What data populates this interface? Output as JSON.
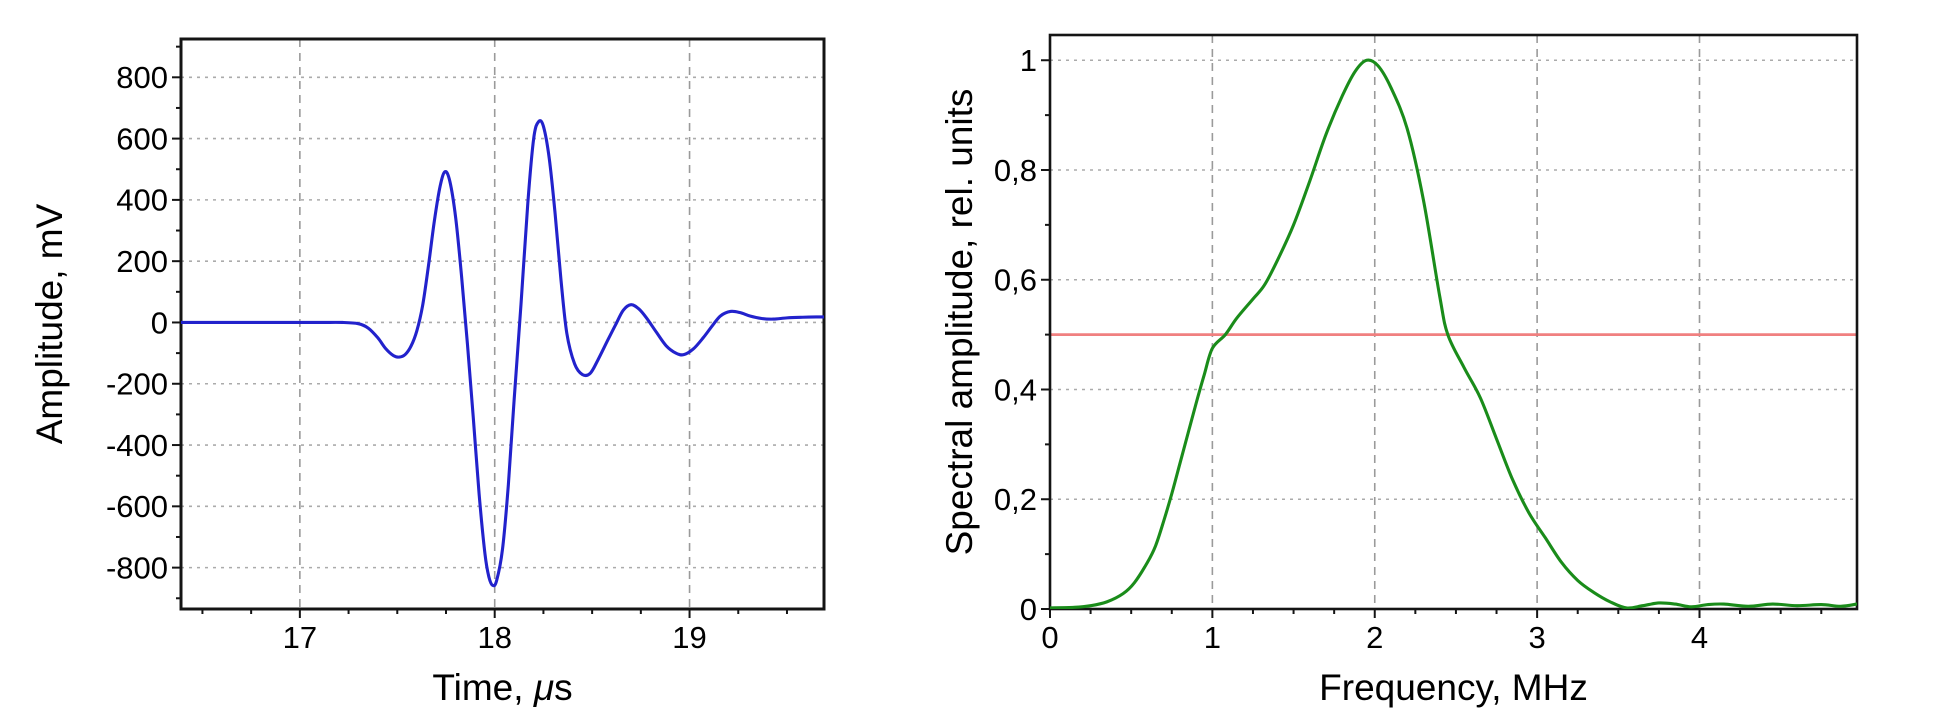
{
  "colors": {
    "background": "#ffffff",
    "frame": "#141414",
    "grid_vertical": "#9a9a9a",
    "grid_horizontal": "#ababab",
    "waveform_line": "#2222cc",
    "spectrum_line": "#1a8c1a",
    "reference_line": "#f08080",
    "text": "#000000"
  },
  "chart_data": [
    {
      "id": "waveform",
      "type": "line",
      "title": "",
      "xlabel": "Time, μs",
      "ylabel": "Amplitude, mV",
      "xlim": [
        16.39,
        19.69
      ],
      "ylim": [
        -935,
        925
      ],
      "grid": true,
      "legend": "none",
      "xticks": [
        {
          "v": 17,
          "label": "17"
        },
        {
          "v": 18,
          "label": "18"
        },
        {
          "v": 19,
          "label": "19"
        }
      ],
      "yticks": [
        {
          "v": 800,
          "label": "800"
        },
        {
          "v": 600,
          "label": "600"
        },
        {
          "v": 400,
          "label": "400"
        },
        {
          "v": 200,
          "label": "200"
        },
        {
          "v": 0,
          "label": "0"
        },
        {
          "v": -200,
          "label": "-200"
        },
        {
          "v": -400,
          "label": "-400"
        },
        {
          "v": -600,
          "label": "-600"
        },
        {
          "v": -800,
          "label": "-800"
        }
      ],
      "minor_x_step": 0.25,
      "minor_y_step": 100,
      "line_color": "#2222cc",
      "series": [
        {
          "name": "echo-waveform",
          "points": [
            [
              16.39,
              0
            ],
            [
              16.6,
              0
            ],
            [
              16.9,
              0
            ],
            [
              17.1,
              0
            ],
            [
              17.22,
              0
            ],
            [
              17.3,
              -4
            ],
            [
              17.35,
              -18
            ],
            [
              17.4,
              -50
            ],
            [
              17.44,
              -85
            ],
            [
              17.48,
              -108
            ],
            [
              17.51,
              -113
            ],
            [
              17.54,
              -105
            ],
            [
              17.57,
              -78
            ],
            [
              17.6,
              -28
            ],
            [
              17.63,
              55
            ],
            [
              17.66,
              185
            ],
            [
              17.69,
              330
            ],
            [
              17.72,
              445
            ],
            [
              17.745,
              492
            ],
            [
              17.77,
              460
            ],
            [
              17.8,
              340
            ],
            [
              17.83,
              150
            ],
            [
              17.86,
              -70
            ],
            [
              17.89,
              -310
            ],
            [
              17.92,
              -560
            ],
            [
              17.95,
              -755
            ],
            [
              17.97,
              -830
            ],
            [
              17.99,
              -858
            ],
            [
              18.01,
              -842
            ],
            [
              18.04,
              -740
            ],
            [
              18.07,
              -530
            ],
            [
              18.1,
              -250
            ],
            [
              18.135,
              60
            ],
            [
              18.17,
              390
            ],
            [
              18.2,
              600
            ],
            [
              18.225,
              655
            ],
            [
              18.25,
              640
            ],
            [
              18.28,
              535
            ],
            [
              18.31,
              355
            ],
            [
              18.34,
              140
            ],
            [
              18.37,
              -35
            ],
            [
              18.41,
              -135
            ],
            [
              18.45,
              -170
            ],
            [
              18.49,
              -166
            ],
            [
              18.53,
              -122
            ],
            [
              18.58,
              -58
            ],
            [
              18.62,
              -8
            ],
            [
              18.66,
              40
            ],
            [
              18.7,
              58
            ],
            [
              18.74,
              44
            ],
            [
              18.78,
              14
            ],
            [
              18.83,
              -32
            ],
            [
              18.88,
              -76
            ],
            [
              18.93,
              -100
            ],
            [
              18.97,
              -105
            ],
            [
              19.02,
              -86
            ],
            [
              19.07,
              -50
            ],
            [
              19.12,
              -8
            ],
            [
              19.16,
              22
            ],
            [
              19.21,
              36
            ],
            [
              19.26,
              32
            ],
            [
              19.31,
              21
            ],
            [
              19.37,
              13
            ],
            [
              19.43,
              11
            ],
            [
              19.5,
              15
            ],
            [
              19.58,
              17
            ],
            [
              19.65,
              18
            ],
            [
              19.69,
              18
            ]
          ]
        }
      ]
    },
    {
      "id": "spectrum",
      "type": "line",
      "title": "",
      "xlabel": "Frequency, MHz",
      "ylabel": "Spectral amplitude, rel. units",
      "xlim": [
        0,
        4.97
      ],
      "ylim": [
        0,
        1.046
      ],
      "grid": true,
      "legend": "none",
      "xticks": [
        {
          "v": 0,
          "label": "0"
        },
        {
          "v": 1,
          "label": "1"
        },
        {
          "v": 2,
          "label": "2"
        },
        {
          "v": 3,
          "label": "3"
        },
        {
          "v": 4,
          "label": "4"
        }
      ],
      "yticks": [
        {
          "v": 1,
          "label": "1"
        },
        {
          "v": 0.8,
          "label": "0,8"
        },
        {
          "v": 0.6,
          "label": "0,6"
        },
        {
          "v": 0.4,
          "label": "0,4"
        },
        {
          "v": 0.2,
          "label": "0,2"
        },
        {
          "v": 0,
          "label": "0"
        }
      ],
      "minor_x_step": 0.25,
      "minor_y_step": 0.1,
      "line_color": "#1a8c1a",
      "ref_lines": [
        {
          "name": "half-amplitude-reference-line",
          "y": 0.5,
          "color": "#f08080"
        }
      ],
      "series": [
        {
          "name": "spectrum",
          "points": [
            [
              0,
              0.002
            ],
            [
              0.15,
              0.003
            ],
            [
              0.25,
              0.006
            ],
            [
              0.35,
              0.013
            ],
            [
              0.45,
              0.028
            ],
            [
              0.52,
              0.048
            ],
            [
              0.6,
              0.085
            ],
            [
              0.65,
              0.115
            ],
            [
              0.7,
              0.16
            ],
            [
              0.75,
              0.21
            ],
            [
              0.8,
              0.265
            ],
            [
              0.85,
              0.32
            ],
            [
              0.9,
              0.375
            ],
            [
              0.95,
              0.427
            ],
            [
              1.0,
              0.475
            ],
            [
              1.08,
              0.5
            ],
            [
              1.15,
              0.53
            ],
            [
              1.25,
              0.565
            ],
            [
              1.32,
              0.59
            ],
            [
              1.4,
              0.635
            ],
            [
              1.5,
              0.7
            ],
            [
              1.6,
              0.78
            ],
            [
              1.7,
              0.865
            ],
            [
              1.8,
              0.935
            ],
            [
              1.88,
              0.98
            ],
            [
              1.95,
              1.0
            ],
            [
              2.02,
              0.99
            ],
            [
              2.1,
              0.95
            ],
            [
              2.2,
              0.875
            ],
            [
              2.3,
              0.745
            ],
            [
              2.4,
              0.57
            ],
            [
              2.45,
              0.5
            ],
            [
              2.55,
              0.44
            ],
            [
              2.65,
              0.385
            ],
            [
              2.75,
              0.31
            ],
            [
              2.85,
              0.235
            ],
            [
              2.95,
              0.175
            ],
            [
              3.05,
              0.13
            ],
            [
              3.15,
              0.085
            ],
            [
              3.25,
              0.052
            ],
            [
              3.35,
              0.03
            ],
            [
              3.45,
              0.013
            ],
            [
              3.55,
              0.002
            ],
            [
              3.65,
              0.006
            ],
            [
              3.75,
              0.011
            ],
            [
              3.85,
              0.009
            ],
            [
              3.95,
              0.004
            ],
            [
              4.05,
              0.008
            ],
            [
              4.15,
              0.009
            ],
            [
              4.3,
              0.005
            ],
            [
              4.45,
              0.009
            ],
            [
              4.6,
              0.006
            ],
            [
              4.75,
              0.008
            ],
            [
              4.87,
              0.005
            ],
            [
              4.97,
              0.009
            ]
          ]
        }
      ]
    }
  ]
}
